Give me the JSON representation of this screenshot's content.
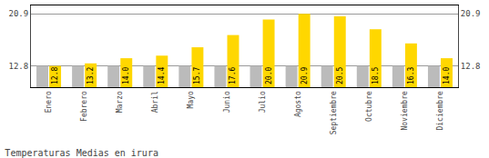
{
  "chart_data": {
    "type": "bar",
    "title": "Temperaturas Medias en irura",
    "categories": [
      "Enero",
      "Febrero",
      "Marzo",
      "Abril",
      "Mayo",
      "Junio",
      "Julio",
      "Agosto",
      "Septiembre",
      "Octubre",
      "Noviembre",
      "Diciembre"
    ],
    "series": [
      {
        "color": "#BBBBBB",
        "values": [
          12.8,
          12.8,
          12.8,
          12.8,
          12.8,
          12.8,
          12.8,
          12.8,
          12.8,
          12.8,
          12.8,
          12.8
        ]
      },
      {
        "color": "#FFD700",
        "data_labels": true,
        "values": [
          12.8,
          13.2,
          14.0,
          14.4,
          15.7,
          17.6,
          20.0,
          20.9,
          20.5,
          18.5,
          16.3,
          14.0
        ],
        "value_labels": [
          "12.8",
          "13.2",
          "14.0",
          "14.4",
          "15.7",
          "17.6",
          "20.0",
          "20.9",
          "20.5",
          "18.5",
          "16.3",
          "14.0"
        ]
      }
    ],
    "ylim": [
      9.5,
      22.2
    ],
    "yticks": [
      12.8,
      20.9
    ],
    "y2lim": [
      9.5,
      22.2
    ],
    "y2ticks": [
      12.8,
      20.9
    ],
    "grid": true
  }
}
